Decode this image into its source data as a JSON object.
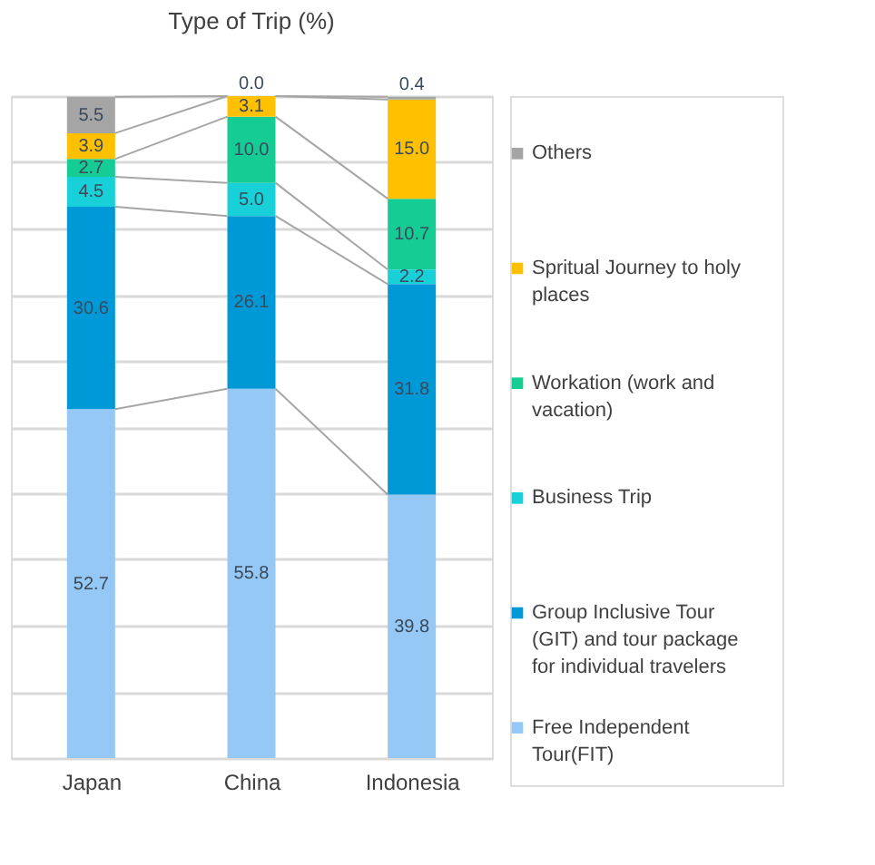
{
  "chart_data": {
    "type": "bar",
    "title": "Type of Trip (%)",
    "stacked": true,
    "categories": [
      "Japan",
      "China",
      "Indonesia"
    ],
    "series": [
      {
        "name": "Free Independent Tour(FIT)",
        "color": "#95c8f5",
        "values": [
          52.7,
          55.8,
          39.8
        ],
        "value_labels": [
          "52.7",
          "55.8",
          "39.8"
        ]
      },
      {
        "name": "Group Inclusive Tour (GIT) and tour package for individual travelers",
        "color": "#0099d8",
        "values": [
          30.6,
          26.1,
          31.8
        ],
        "value_labels": [
          "30.6",
          "26.1",
          "31.8"
        ]
      },
      {
        "name": "Business Trip",
        "color": "#17d0d8",
        "values": [
          4.5,
          5.0,
          2.2
        ],
        "value_labels": [
          "4.5",
          "5.0",
          "2.2"
        ]
      },
      {
        "name": "Workation (work and vacation)",
        "color": "#15cc95",
        "values": [
          2.7,
          10.0,
          10.7
        ],
        "value_labels": [
          "2.7",
          "10.0",
          "10.7"
        ]
      },
      {
        "name": "Spritual Journey to holy places",
        "color": "#ffc000",
        "values": [
          3.9,
          3.1,
          15.0
        ],
        "value_labels": [
          "3.9",
          "3.1",
          "15.0"
        ]
      },
      {
        "name": "Others",
        "color": "#a5a5a5",
        "values": [
          5.5,
          0.0,
          0.4
        ],
        "value_labels": [
          "5.5",
          "0.0",
          "0.4"
        ]
      }
    ],
    "ylim": [
      0,
      100
    ],
    "tick_labels": "x",
    "grid": "y",
    "legend": "right"
  }
}
